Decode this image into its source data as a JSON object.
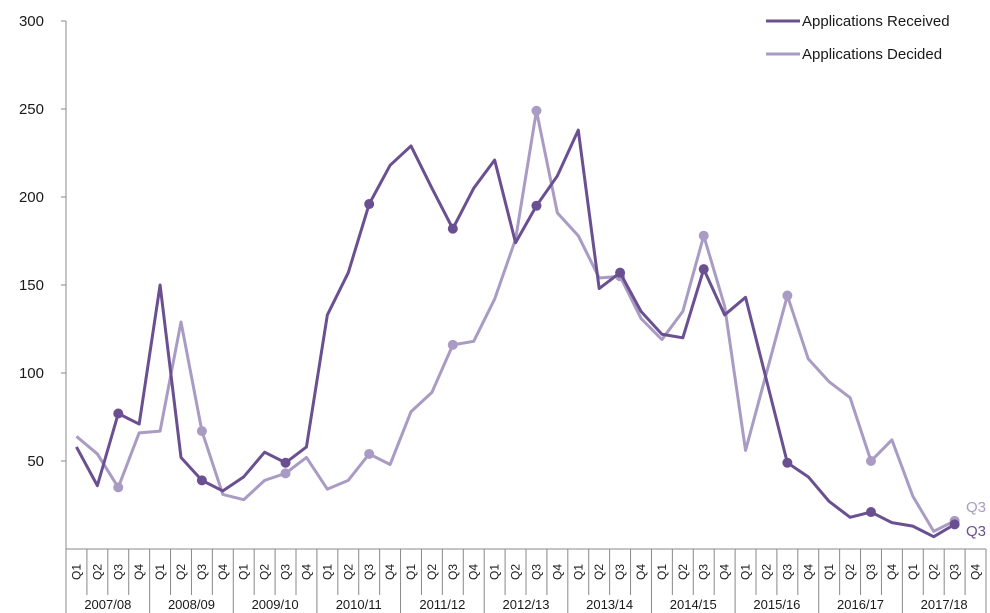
{
  "chart_data": {
    "type": "line",
    "title": "",
    "xlabel": "",
    "ylabel": "",
    "ylim": [
      0,
      300
    ],
    "yticks": [
      50,
      100,
      150,
      200,
      250,
      300
    ],
    "years": [
      "2007/08",
      "2008/09",
      "2009/10",
      "2010/11",
      "2011/12",
      "2012/13",
      "2013/14",
      "2014/15",
      "2015/16",
      "2016/17",
      "2017/18"
    ],
    "quarters": [
      "Q1",
      "Q2",
      "Q3",
      "Q4"
    ],
    "legend_position": "top-right",
    "grid": false,
    "series": [
      {
        "name": "Applications Received",
        "color": "#6a4f91",
        "values": [
          58,
          36,
          77,
          71,
          150,
          52,
          39,
          33,
          41,
          55,
          49,
          58,
          133,
          157,
          196,
          218,
          229,
          205,
          182,
          205,
          221,
          174,
          195,
          212,
          238,
          148,
          157,
          135,
          122,
          120,
          159,
          133,
          143,
          96,
          49,
          41,
          27,
          18,
          21,
          15,
          13,
          7,
          14,
          null
        ],
        "end_label": "Q3"
      },
      {
        "name": "Applications Decided",
        "color": "#a99bc3",
        "values": [
          64,
          54,
          35,
          66,
          67,
          129,
          67,
          31,
          28,
          39,
          43,
          52,
          34,
          39,
          54,
          48,
          78,
          89,
          116,
          118,
          142,
          176,
          249,
          191,
          178,
          154,
          155,
          131,
          119,
          135,
          178,
          138,
          56,
          100,
          144,
          108,
          95,
          86,
          50,
          62,
          30,
          10,
          16,
          null
        ],
        "end_label": "Q3"
      }
    ]
  }
}
